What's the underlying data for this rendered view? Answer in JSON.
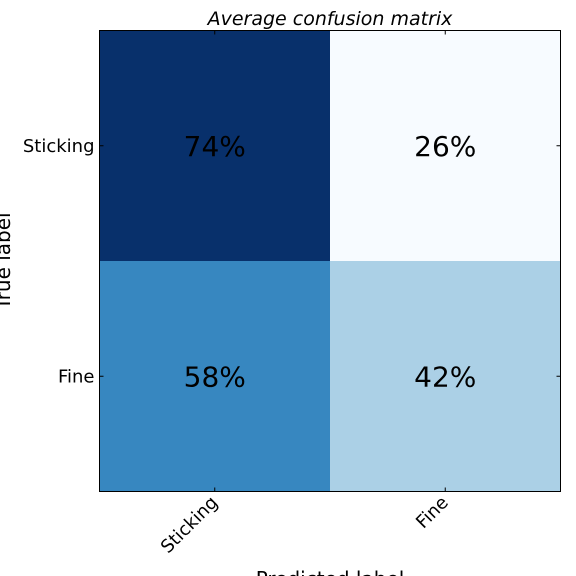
{
  "chart_data": {
    "type": "heatmap",
    "title": "Average confusion matrix",
    "xlabel": "Predicted label",
    "ylabel": "True label",
    "x_categories": [
      "Sticking",
      "Fine"
    ],
    "y_categories": [
      "Sticking",
      "Fine"
    ],
    "values": [
      [
        0.74,
        0.26
      ],
      [
        0.58,
        0.42
      ]
    ],
    "cell_labels": [
      [
        "74%",
        "26%"
      ],
      [
        "58%",
        "42%"
      ]
    ],
    "colormap": "Blues",
    "colors": {
      "low": "#f7fbff",
      "high": "#08306b",
      "text": "#000000",
      "frame": "#000000"
    },
    "x_tick_rotation_deg": 45,
    "grid": false,
    "colorbar": false
  }
}
